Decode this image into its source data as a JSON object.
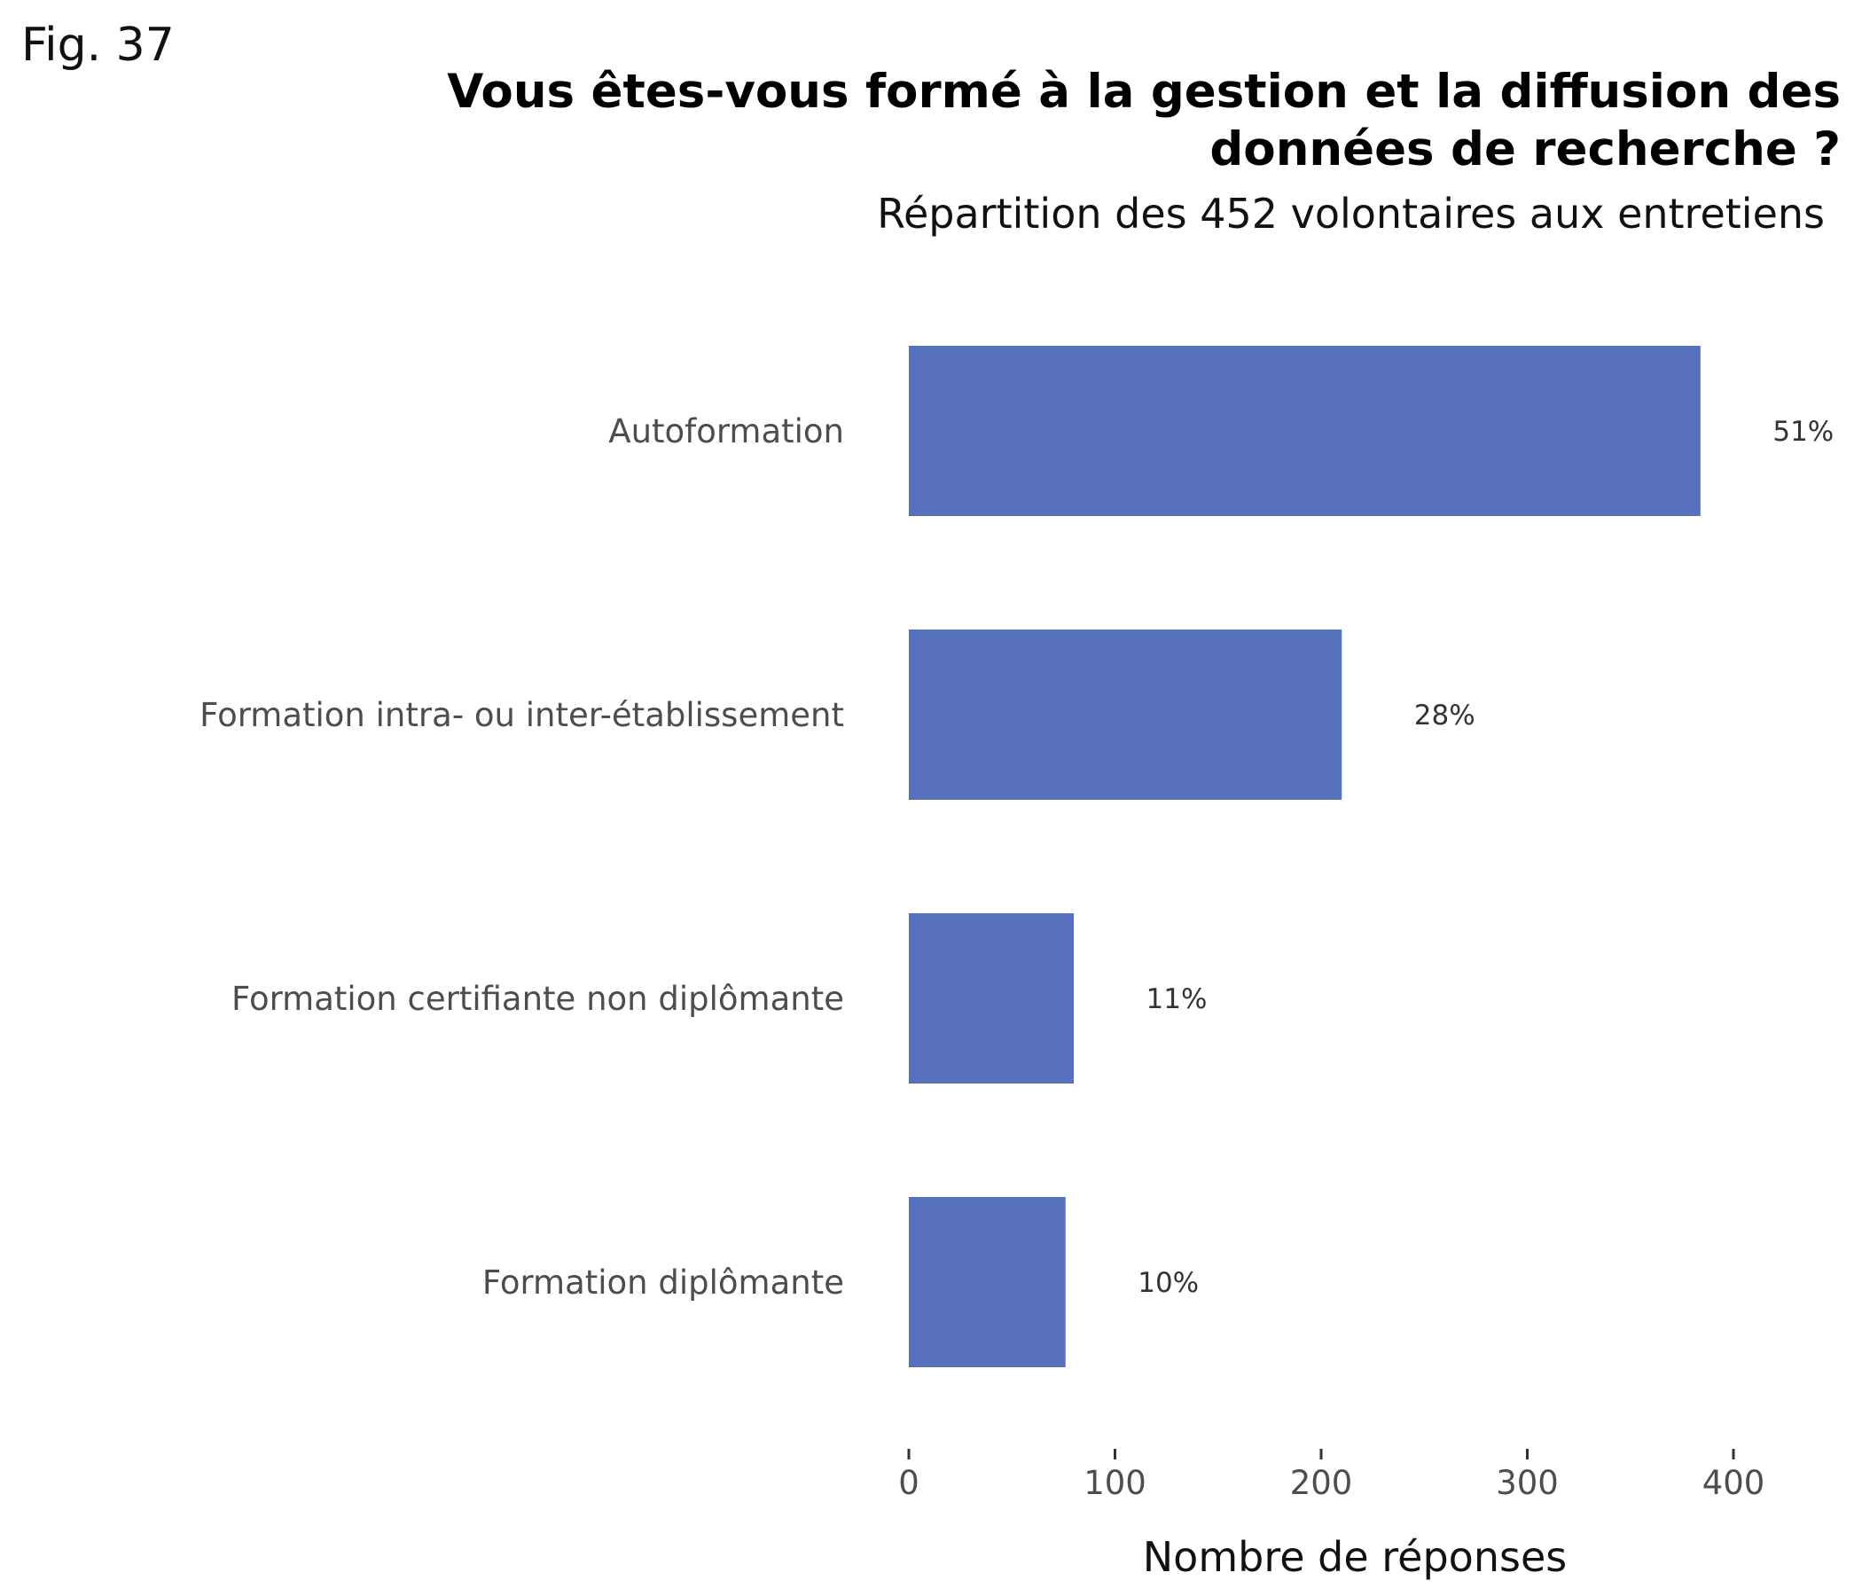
{
  "figure_label": "Fig. 37",
  "chart_data": {
    "type": "bar",
    "orientation": "horizontal",
    "title_lines": [
      "Vous êtes-vous formé à la gestion et la diffusion des",
      "données de recherche ?"
    ],
    "subtitle": "Répartition des 452 volontaires aux entretiens",
    "xlabel": "Nombre de réponses",
    "ylabel": "",
    "xlim": [
      0,
      400
    ],
    "xticks": [
      0,
      100,
      200,
      300,
      400
    ],
    "grid": false,
    "legend": "none",
    "bar_color": "#5670bc",
    "categories": [
      "Autoformation",
      "Formation intra- ou inter-établissement",
      "Formation certifiante non diplômante",
      "Formation diplômante"
    ],
    "values": [
      384,
      210,
      80,
      76
    ],
    "data_labels": [
      "51%",
      "28%",
      "11%",
      "10%"
    ]
  }
}
